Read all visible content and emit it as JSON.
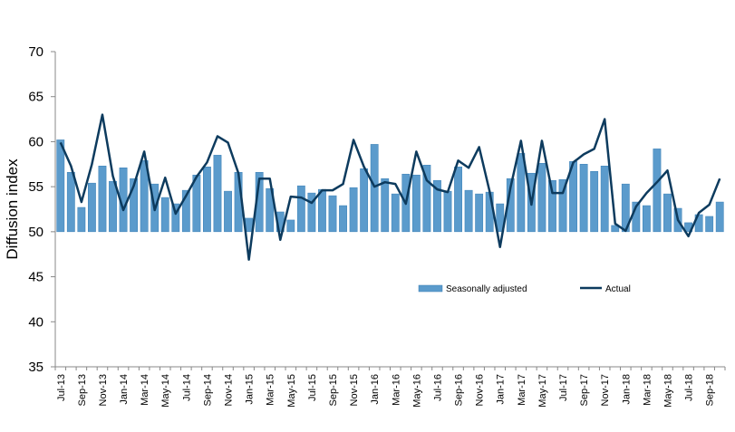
{
  "chart_data": {
    "type": "bar",
    "title": "",
    "xlabel": "",
    "ylabel": "Diffusion index",
    "ylim": [
      35,
      70
    ],
    "yticks": [
      35,
      40,
      45,
      50,
      55,
      60,
      65,
      70
    ],
    "bar_base": 50,
    "grid": false,
    "legend_position": "center-right",
    "colors": {
      "bar": "#5b9bcc",
      "bar_edge": "#3a7fb5",
      "line": "#0d3b5e",
      "axis": "#888888"
    },
    "categories": [
      "Jul-13",
      "Aug-13",
      "Sep-13",
      "Oct-13",
      "Nov-13",
      "Dec-13",
      "Jan-14",
      "Feb-14",
      "Mar-14",
      "Apr-14",
      "May-14",
      "Jun-14",
      "Jul-14",
      "Aug-14",
      "Sep-14",
      "Oct-14",
      "Nov-14",
      "Dec-14",
      "Jan-15",
      "Feb-15",
      "Mar-15",
      "Apr-15",
      "May-15",
      "Jun-15",
      "Jul-15",
      "Aug-15",
      "Sep-15",
      "Oct-15",
      "Nov-15",
      "Dec-15",
      "Jan-16",
      "Feb-16",
      "Mar-16",
      "Apr-16",
      "May-16",
      "Jun-16",
      "Jul-16",
      "Aug-16",
      "Sep-16",
      "Oct-16",
      "Nov-16",
      "Dec-16",
      "Jan-17",
      "Feb-17",
      "Mar-17",
      "Apr-17",
      "May-17",
      "Jun-17",
      "Jul-17",
      "Aug-17",
      "Sep-17",
      "Oct-17",
      "Nov-17",
      "Dec-17",
      "Jan-18",
      "Feb-18",
      "Mar-18",
      "Apr-18",
      "May-18",
      "Jun-18",
      "Jul-18",
      "Aug-18",
      "Sep-18",
      "Oct-18"
    ],
    "tick_labels": [
      "Jul-13",
      "Sep-13",
      "Nov-13",
      "Jan-14",
      "Mar-14",
      "May-14",
      "Jul-14",
      "Sep-14",
      "Nov-14",
      "Jan-15",
      "Mar-15",
      "May-15",
      "Jul-15",
      "Sep-15",
      "Nov-15",
      "Jan-16",
      "Mar-16",
      "May-16",
      "Jul-16",
      "Sep-16",
      "Nov-16",
      "Jan-17",
      "Mar-17",
      "May-17",
      "Jul-17",
      "Sep-17",
      "Nov-17",
      "Jan-18",
      "Mar-18",
      "May-18",
      "Jul-18",
      "Sep-18"
    ],
    "series": [
      {
        "name": "Seasonally adjusted",
        "type": "bar",
        "values": [
          60.2,
          56.6,
          52.7,
          55.4,
          57.3,
          55.6,
          57.1,
          55.9,
          57.9,
          55.3,
          53.8,
          53.1,
          54.6,
          56.3,
          57.2,
          58.5,
          54.5,
          56.6,
          51.5,
          56.6,
          54.8,
          52.2,
          51.3,
          55.1,
          54.3,
          54.7,
          54.0,
          52.9,
          54.9,
          57.0,
          59.7,
          55.9,
          54.2,
          56.4,
          56.3,
          57.4,
          55.7,
          54.5,
          57.2,
          54.6,
          54.2,
          54.4,
          53.1,
          55.9,
          58.7,
          56.5,
          57.6,
          55.7,
          55.8,
          57.8,
          57.5,
          56.7,
          57.3,
          50.7,
          55.3,
          53.3,
          52.9,
          59.2,
          54.2,
          52.6,
          51.0,
          51.9,
          51.7,
          53.3
        ]
      },
      {
        "name": "Actual",
        "type": "line",
        "values": [
          59.9,
          57.3,
          53.3,
          57.5,
          63.0,
          56.2,
          52.4,
          55.1,
          58.9,
          52.4,
          56.0,
          52.0,
          54.0,
          56.1,
          57.7,
          60.6,
          59.9,
          56.5,
          46.9,
          55.9,
          55.9,
          49.1,
          53.9,
          53.8,
          53.2,
          54.6,
          54.6,
          55.3,
          60.2,
          57.2,
          55.0,
          55.5,
          55.3,
          53.1,
          58.9,
          55.7,
          54.7,
          54.4,
          57.9,
          57.1,
          59.4,
          54.5,
          48.3,
          54.9,
          60.1,
          53.0,
          60.1,
          54.3,
          54.3,
          57.7,
          58.6,
          59.2,
          62.5,
          50.9,
          50.1,
          52.8,
          54.3,
          55.5,
          56.8,
          51.3,
          49.5,
          52.1,
          53.0,
          55.9
        ]
      }
    ]
  }
}
